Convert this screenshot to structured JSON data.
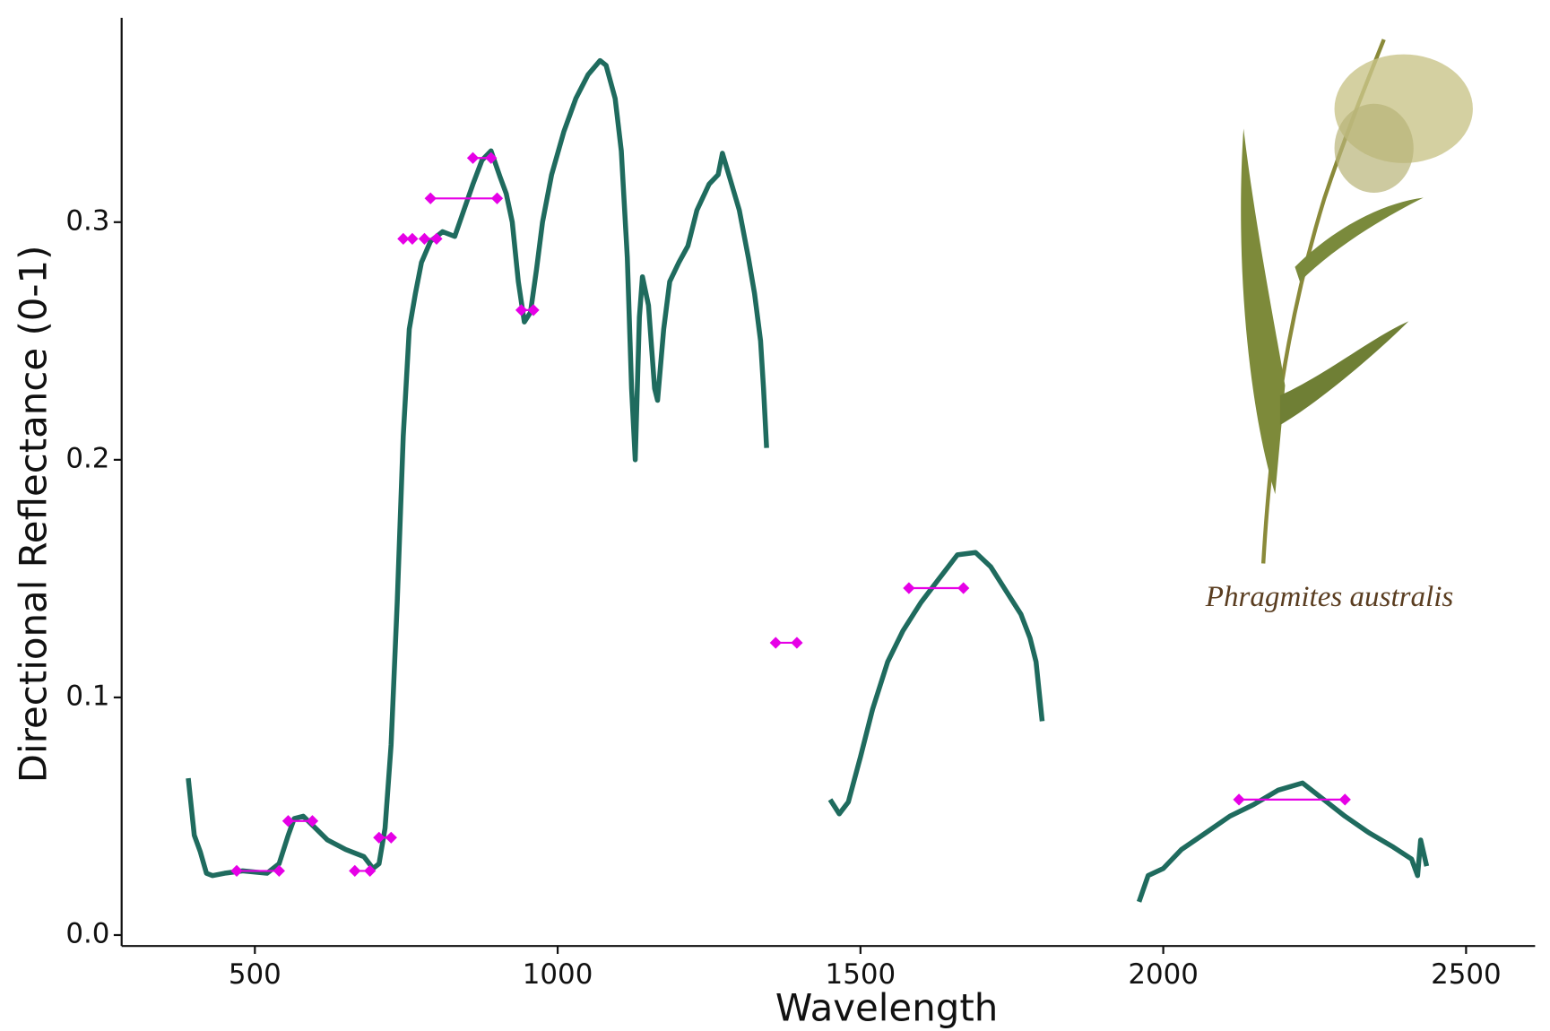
{
  "chart_data": {
    "type": "line",
    "x_label": "Wavelength",
    "y_label": "Directional Reflectance (0-1)",
    "annotation": "Phragmites australis",
    "xlim": [
      280,
      2614
    ],
    "ylim": [
      -0.0046,
      0.386
    ],
    "xticks": [
      500,
      1000,
      1500,
      2000,
      2500
    ],
    "yticks": [
      {
        "value": 0,
        "label": "0.0"
      },
      0.1,
      0.2,
      0.3
    ],
    "x": [
      390,
      400,
      410,
      420,
      430,
      450,
      480,
      520,
      540,
      555,
      565,
      580,
      600,
      620,
      650,
      680,
      695,
      705,
      715,
      725,
      735,
      745,
      755,
      765,
      775,
      790,
      810,
      830,
      845,
      860,
      875,
      890,
      905,
      915,
      925,
      935,
      945,
      955,
      965,
      975,
      990,
      1010,
      1030,
      1050,
      1070,
      1080,
      1095,
      1105,
      1115,
      1122,
      1128,
      1135,
      1140,
      1150,
      1160,
      1165,
      1175,
      1185,
      1200,
      1215,
      1230,
      1250,
      1265,
      1272,
      1285,
      1300,
      1315,
      1325,
      1335,
      1340,
      1345,
      1400,
      1450,
      1465,
      1480,
      1500,
      1520,
      1545,
      1570,
      1600,
      1630,
      1660,
      1690,
      1715,
      1740,
      1765,
      1780,
      1790,
      1800,
      1900,
      1960,
      1975,
      2000,
      2030,
      2070,
      2110,
      2150,
      2190,
      2230,
      2260,
      2300,
      2340,
      2380,
      2410,
      2420,
      2425,
      2435
    ],
    "series": [
      {
        "color": "#1f6b5e",
        "values": [
          0.066,
          0.042,
          0.035,
          0.026,
          0.025,
          0.026,
          0.027,
          0.026,
          0.03,
          0.042,
          0.049,
          0.05,
          0.045,
          0.04,
          0.036,
          0.033,
          0.028,
          0.03,
          0.045,
          0.08,
          0.14,
          0.21,
          0.255,
          0.27,
          0.283,
          0.292,
          0.296,
          0.294,
          0.305,
          0.316,
          0.326,
          0.33,
          0.319,
          0.312,
          0.3,
          0.275,
          0.258,
          0.262,
          0.28,
          0.3,
          0.32,
          0.338,
          0.352,
          0.362,
          0.368,
          0.366,
          0.352,
          0.33,
          0.285,
          0.23,
          0.2,
          0.26,
          0.277,
          0.265,
          0.23,
          0.225,
          0.255,
          0.275,
          0.283,
          0.29,
          0.305,
          0.316,
          0.32,
          0.329,
          0.318,
          0.305,
          0.285,
          0.27,
          0.25,
          0.23,
          0.205,
          null,
          0.057,
          0.051,
          0.056,
          0.075,
          0.095,
          0.115,
          0.128,
          0.14,
          0.15,
          0.16,
          0.161,
          0.155,
          0.145,
          0.135,
          0.125,
          0.115,
          0.09,
          null,
          0.014,
          0.025,
          0.028,
          0.036,
          0.043,
          0.05,
          0.055,
          0.061,
          0.064,
          0.058,
          0.05,
          0.043,
          0.037,
          0.032,
          0.025,
          0.04,
          0.029
        ]
      }
    ],
    "bands": {
      "color": "#e600e6",
      "start": [
        470,
        555,
        665,
        705,
        745,
        780,
        790,
        860,
        940,
        1360,
        1580,
        2125
      ],
      "end": [
        540,
        595,
        690,
        725,
        760,
        800,
        900,
        890,
        960,
        1395,
        1670,
        2300
      ],
      "values": [
        0.027,
        0.048,
        0.027,
        0.041,
        0.293,
        0.293,
        0.31,
        0.327,
        0.263,
        0.123,
        0.146,
        0.057
      ]
    }
  }
}
